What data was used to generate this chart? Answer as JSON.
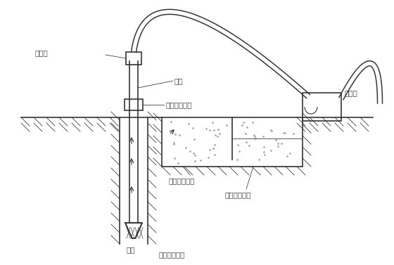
{
  "bg_color": "#ffffff",
  "line_color": "#333333",
  "hatch_color": "#666666",
  "text_color": "#444444",
  "labels": {
    "water_faucet": "水龙头",
    "drill_rod": "钻杆",
    "drill_machine": "钻机回转装置",
    "mud_pump": "泥浆泵",
    "sedimentation_pool1": "沉淀池及沉渣",
    "mud_pool": "泥浆池及泥浆",
    "mud_circulation": "泥浆循环方向",
    "drill_bit": "钻头"
  },
  "font_size": 7.5,
  "line_width": 1.2,
  "thin_line": 0.8
}
